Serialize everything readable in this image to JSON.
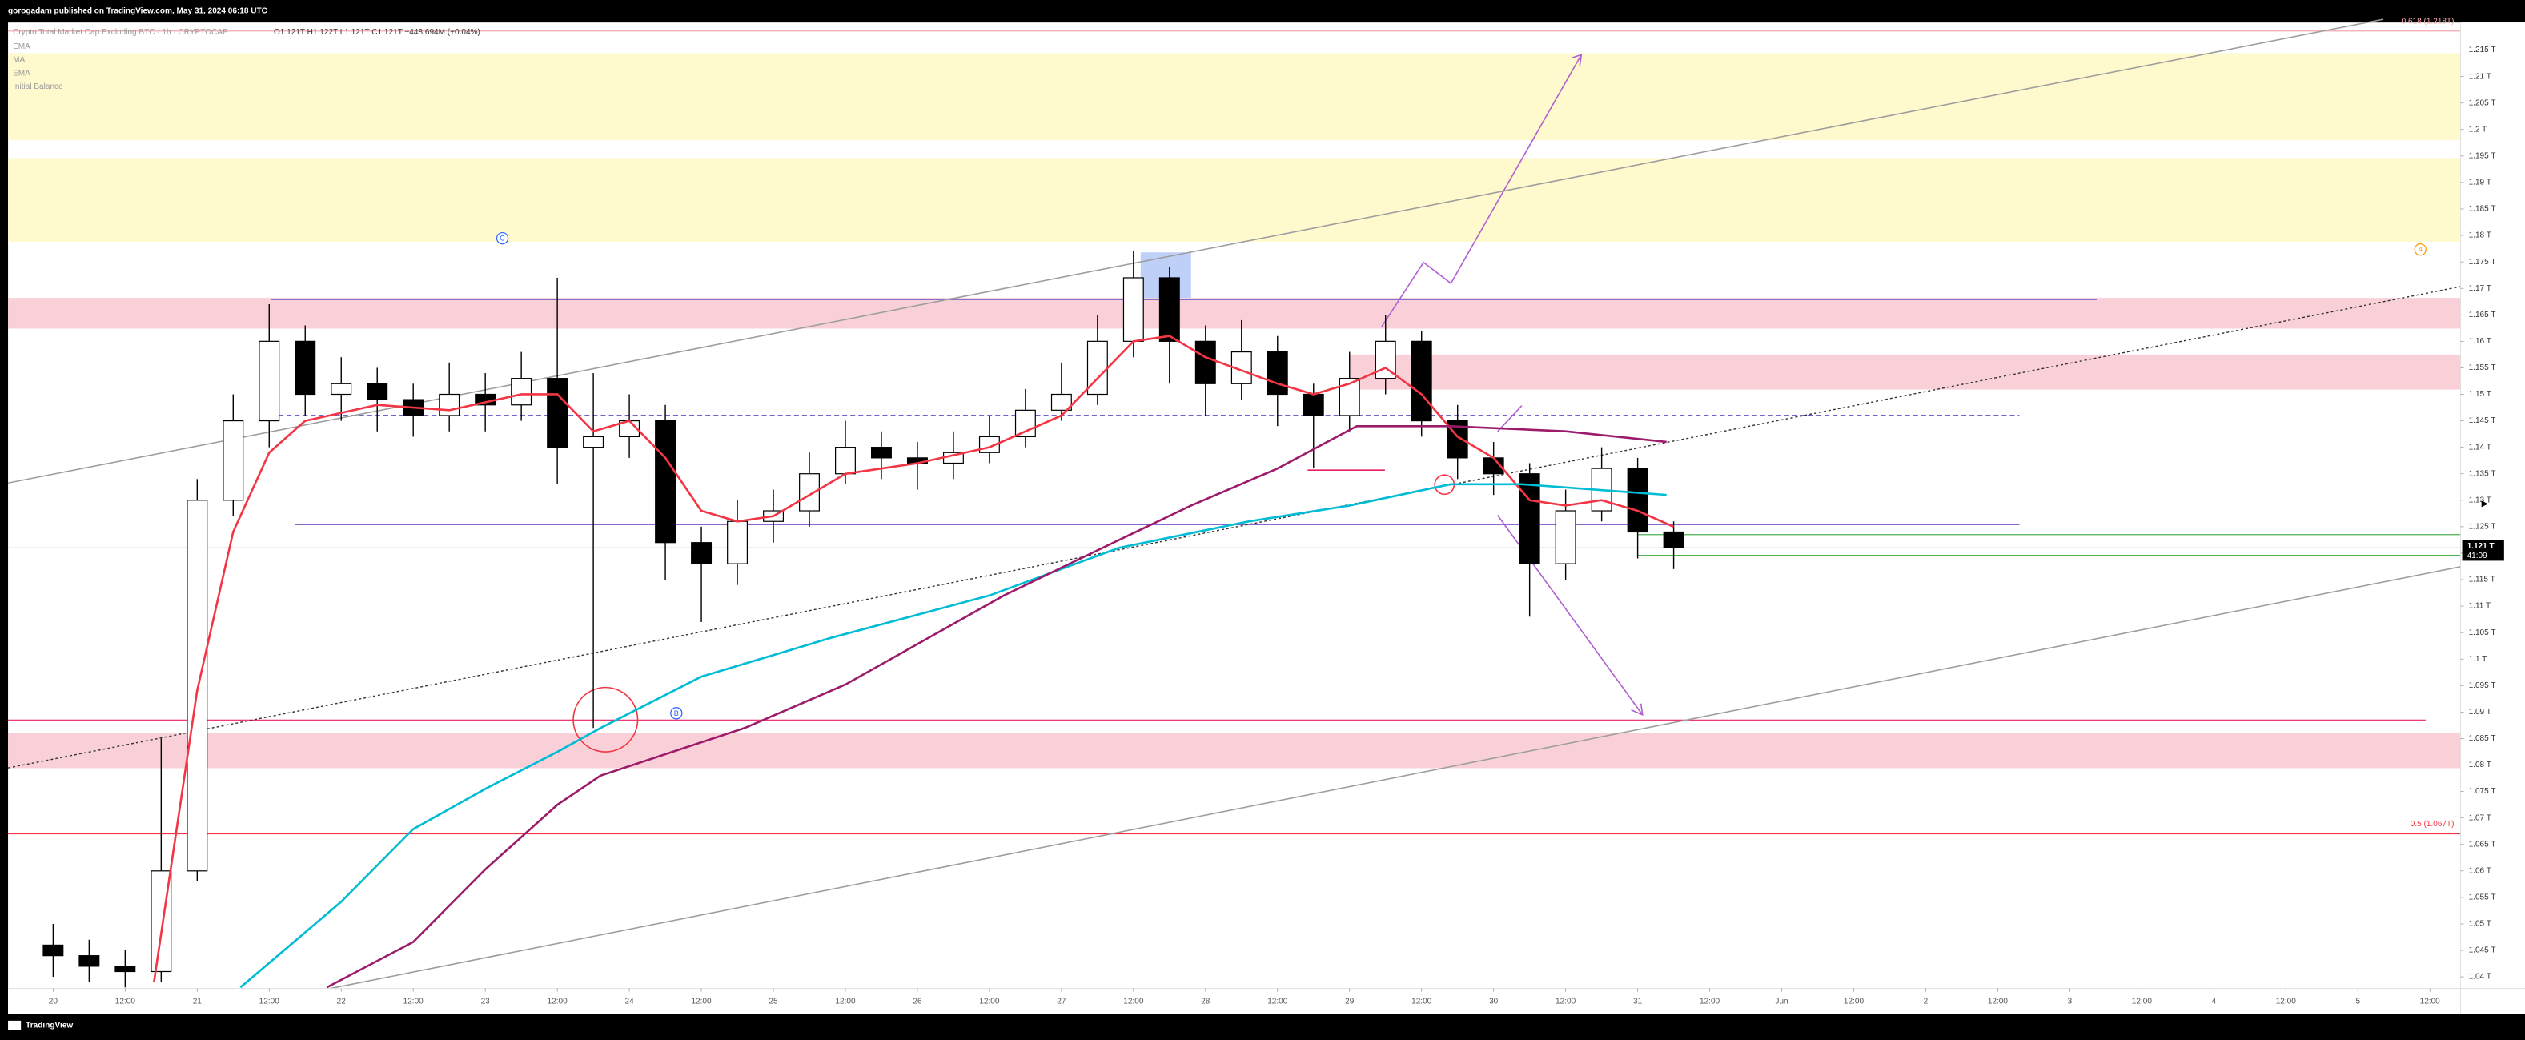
{
  "header": "gorogadam published on TradingView.com, May 31, 2024 06:18 UTC",
  "footer": "TradingView",
  "chart_data": {
    "type": "candlestick",
    "symbol": "Crypto Total Market Cap Excluding BTC · 1h · CRYPTOCAP",
    "ohlc": "O1.121T H1.122T L1.121T C1.121T +448.694M (+0.04%)",
    "legend_extra": "Initial Balance",
    "x": [
      20,
      20.25,
      20.5,
      20.75,
      21,
      21.25,
      21.5,
      21.75,
      22,
      22.25,
      22.5,
      22.75,
      23,
      23.25,
      23.5,
      23.75,
      24,
      24.25,
      24.5,
      24.75,
      25,
      25.25,
      25.5,
      25.75,
      26,
      26.25,
      26.5,
      26.75,
      27,
      27.25,
      27.5,
      27.75,
      28,
      28.25,
      28.5,
      28.75,
      29,
      29.25,
      29.5,
      29.75,
      30,
      30.25,
      30.5,
      30.75,
      31,
      31.25
    ],
    "open": [
      1.046,
      1.044,
      1.042,
      1.041,
      1.06,
      1.13,
      1.145,
      1.16,
      1.15,
      1.152,
      1.149,
      1.146,
      1.15,
      1.148,
      1.153,
      1.14,
      1.142,
      1.145,
      1.122,
      1.118,
      1.126,
      1.128,
      1.135,
      1.14,
      1.138,
      1.137,
      1.139,
      1.142,
      1.147,
      1.15,
      1.16,
      1.172,
      1.16,
      1.152,
      1.158,
      1.15,
      1.146,
      1.153,
      1.16,
      1.145,
      1.138,
      1.135,
      1.118,
      1.128,
      1.136,
      1.124
    ],
    "high": [
      1.05,
      1.047,
      1.045,
      1.085,
      1.134,
      1.15,
      1.167,
      1.163,
      1.157,
      1.155,
      1.152,
      1.156,
      1.154,
      1.158,
      1.172,
      1.154,
      1.15,
      1.148,
      1.125,
      1.13,
      1.132,
      1.139,
      1.145,
      1.143,
      1.141,
      1.143,
      1.146,
      1.151,
      1.156,
      1.165,
      1.177,
      1.174,
      1.163,
      1.164,
      1.161,
      1.152,
      1.158,
      1.165,
      1.162,
      1.148,
      1.141,
      1.137,
      1.132,
      1.14,
      1.138,
      1.126
    ],
    "low": [
      1.04,
      1.039,
      1.038,
      1.039,
      1.058,
      1.127,
      1.14,
      1.146,
      1.145,
      1.143,
      1.142,
      1.143,
      1.143,
      1.145,
      1.133,
      1.087,
      1.138,
      1.115,
      1.107,
      1.114,
      1.122,
      1.125,
      1.133,
      1.134,
      1.132,
      1.134,
      1.137,
      1.14,
      1.145,
      1.148,
      1.157,
      1.152,
      1.146,
      1.149,
      1.144,
      1.136,
      1.143,
      1.15,
      1.142,
      1.134,
      1.131,
      1.108,
      1.115,
      1.126,
      1.119,
      1.117
    ],
    "close": [
      1.044,
      1.042,
      1.041,
      1.06,
      1.13,
      1.145,
      1.16,
      1.15,
      1.152,
      1.149,
      1.146,
      1.15,
      1.148,
      1.153,
      1.14,
      1.142,
      1.145,
      1.122,
      1.118,
      1.126,
      1.128,
      1.135,
      1.14,
      1.138,
      1.137,
      1.139,
      1.142,
      1.147,
      1.15,
      1.16,
      1.172,
      1.16,
      1.152,
      1.158,
      1.15,
      1.146,
      1.153,
      1.16,
      1.145,
      1.138,
      1.135,
      1.118,
      1.128,
      1.136,
      1.124,
      1.121
    ],
    "up_color": "#ffffff",
    "down_color": "#000000",
    "overlays": [
      {
        "name": "EMA",
        "color": "#f23645",
        "x": [
          20.7,
          21,
          21.25,
          21.5,
          21.75,
          22.25,
          22.75,
          23.25,
          23.5,
          23.75,
          24,
          24.25,
          24.5,
          24.75,
          25,
          25.5,
          26,
          26.5,
          27,
          27.25,
          27.5,
          27.75,
          28,
          28.5,
          28.75,
          29,
          29.25,
          29.5,
          29.75,
          30,
          30.25,
          30.5,
          30.75,
          31,
          31.25
        ],
        "values": [
          1.039,
          1.094,
          1.124,
          1.139,
          1.145,
          1.148,
          1.147,
          1.15,
          1.15,
          1.143,
          1.145,
          1.138,
          1.128,
          1.126,
          1.127,
          1.135,
          1.137,
          1.14,
          1.146,
          1.153,
          1.16,
          1.161,
          1.157,
          1.152,
          1.15,
          1.152,
          1.155,
          1.15,
          1.142,
          1.138,
          1.13,
          1.129,
          1.13,
          1.128,
          1.125
        ]
      },
      {
        "name": "MA",
        "color": "#00bcd4",
        "x": [
          21.3,
          22,
          22.5,
          23,
          23.5,
          23.8,
          24.5,
          25.4,
          26.5,
          27.4,
          28.3,
          29,
          29.7,
          30.2,
          31.2
        ],
        "values": [
          1.038,
          1.0542,
          1.0679,
          1.0755,
          1.0825,
          1.087,
          1.0967,
          1.104,
          1.112,
          1.121,
          1.126,
          1.129,
          1.133,
          1.133,
          1.131
        ]
      },
      {
        "name": "EMA",
        "color": "#9c1c6b",
        "x": [
          21.9,
          22.5,
          23,
          23.5,
          23.8,
          24.8,
          25.5,
          26.6,
          27.4,
          27.9,
          28.5,
          29.05,
          29.7,
          30.5,
          31.2
        ],
        "values": [
          1.038,
          1.0466,
          1.0603,
          1.0725,
          1.078,
          1.087,
          1.0952,
          1.112,
          1.1225,
          1.129,
          1.136,
          1.144,
          1.144,
          1.143,
          1.141
        ]
      }
    ],
    "zones": [
      {
        "from": 1.198,
        "to": 1.2144,
        "x": [
          19.687,
          36.713
        ],
        "color": "#fff9c4"
      },
      {
        "from": 1.1788,
        "to": 1.1946,
        "x": [
          19.687,
          36.713
        ],
        "color": "#fff9c4"
      },
      {
        "from": 1.1624,
        "to": 1.1682,
        "x": [
          19.687,
          36.713
        ],
        "color": "#f8c8d0"
      },
      {
        "from": 1.1509,
        "to": 1.1575,
        "x": [
          29.0,
          36.713
        ],
        "color": "#f8c8d0"
      },
      {
        "from": 1.0794,
        "to": 1.0861,
        "x": [
          19.687,
          36.713
        ],
        "color": "#f8c8d0"
      },
      {
        "from": 1.1682,
        "to": 1.1768,
        "x": [
          27.55,
          27.9
        ],
        "color": "#b3c7f7"
      }
    ],
    "levels": [
      {
        "value": 1.2186,
        "x": [
          19.687,
          36.713
        ],
        "color": "#f7a8b0",
        "label": "0.618 (1.218T)"
      },
      {
        "value": 1.067,
        "x": [
          19.687,
          36.713
        ],
        "color": "#f23645",
        "label": "0.5 (1.067T)"
      },
      {
        "value": 1.0885,
        "x": [
          19.687,
          36.47
        ],
        "color": "#e91e63"
      },
      {
        "value": 1.1679,
        "x": [
          21.51,
          34.19
        ],
        "color": "#5b4fc7"
      },
      {
        "value": 1.1254,
        "x": [
          21.68,
          33.65
        ],
        "color": "#7b4fc7"
      },
      {
        "value": 1.146,
        "x": [
          21.51,
          33.65
        ],
        "color": "#5b4fc7",
        "dash": true
      },
      {
        "value": 1.1235,
        "x": [
          31.0,
          36.713
        ],
        "color": "#4caf50"
      },
      {
        "value": 1.1196,
        "x": [
          31.0,
          36.713
        ],
        "color": "#4caf50"
      },
      {
        "value": 1.121,
        "x": [
          19.687,
          36.713
        ],
        "color": "#bbbbbb"
      }
    ],
    "annotations": [
      "C",
      "B",
      "4"
    ],
    "last_price": {
      "value": 1.121,
      "label": "1.121 T"
    },
    "countdown": "41:09",
    "xlim": [
      19.687,
      36.713
    ],
    "ylim": [
      1.0378,
      1.2202
    ],
    "xticks": [
      20,
      {
        "value": 20.5,
        "label": "12:00"
      },
      21,
      {
        "value": 21.5,
        "label": "12:00"
      },
      22,
      {
        "value": 22.5,
        "label": "12:00"
      },
      23,
      {
        "value": 23.5,
        "label": "12:00"
      },
      24,
      {
        "value": 24.5,
        "label": "12:00"
      },
      25,
      {
        "value": 25.5,
        "label": "12:00"
      },
      26,
      {
        "value": 26.5,
        "label": "12:00"
      },
      27,
      {
        "value": 27.5,
        "label": "12:00"
      },
      28,
      {
        "value": 28.5,
        "label": "12:00"
      },
      29,
      {
        "value": 29.5,
        "label": "12:00"
      },
      30,
      {
        "value": 30.5,
        "label": "12:00"
      },
      31,
      {
        "value": 31.5,
        "label": "12:00"
      },
      {
        "value": 32,
        "label": "Jun"
      },
      {
        "value": 32.5,
        "label": "12:00"
      },
      {
        "value": 33,
        "label": "2"
      },
      {
        "value": 33.5,
        "label": "12:00"
      },
      {
        "value": 34,
        "label": "3"
      },
      {
        "value": 34.5,
        "label": "12:00"
      },
      {
        "value": 35,
        "label": "4"
      },
      {
        "value": 35.5,
        "label": "12:00"
      },
      {
        "value": 36,
        "label": "5"
      },
      {
        "value": 36.5,
        "label": "12:00"
      }
    ],
    "yticks": [
      {
        "value": 1.04,
        "label": "1.04 T"
      },
      {
        "value": 1.045,
        "label": "1.045 T"
      },
      {
        "value": 1.05,
        "label": "1.05 T"
      },
      {
        "value": 1.055,
        "label": "1.055 T"
      },
      {
        "value": 1.06,
        "label": "1.06 T"
      },
      {
        "value": 1.065,
        "label": "1.065 T"
      },
      {
        "value": 1.07,
        "label": "1.07 T"
      },
      {
        "value": 1.075,
        "label": "1.075 T"
      },
      {
        "value": 1.08,
        "label": "1.08 T"
      },
      {
        "value": 1.085,
        "label": "1.085 T"
      },
      {
        "value": 1.09,
        "label": "1.09 T"
      },
      {
        "value": 1.095,
        "label": "1.095 T"
      },
      {
        "value": 1.1,
        "label": "1.1 T"
      },
      {
        "value": 1.105,
        "label": "1.105 T"
      },
      {
        "value": 1.11,
        "label": "1.11 T"
      },
      {
        "value": 1.115,
        "label": "1.115 T"
      },
      {
        "value": 1.12,
        "label": "1.12 T"
      },
      {
        "value": 1.125,
        "label": "1.125 T"
      },
      {
        "value": 1.13,
        "label": "1.13 T"
      },
      {
        "value": 1.135,
        "label": "1.135 T"
      },
      {
        "value": 1.14,
        "label": "1.14 T"
      },
      {
        "value": 1.145,
        "label": "1.145 T"
      },
      {
        "value": 1.15,
        "label": "1.15 T"
      },
      {
        "value": 1.155,
        "label": "1.155 T"
      },
      {
        "value": 1.16,
        "label": "1.16 T"
      },
      {
        "value": 1.165,
        "label": "1.165 T"
      },
      {
        "value": 1.17,
        "label": "1.17 T"
      },
      {
        "value": 1.175,
        "label": "1.175 T"
      },
      {
        "value": 1.18,
        "label": "1.18 T"
      },
      {
        "value": 1.185,
        "label": "1.185 T"
      },
      {
        "value": 1.19,
        "label": "1.19 T"
      },
      {
        "value": 1.195,
        "label": "1.195 T"
      },
      {
        "value": 1.2,
        "label": "1.2 T"
      },
      {
        "value": 1.205,
        "label": "1.205 T"
      },
      {
        "value": 1.21,
        "label": "1.21 T"
      },
      {
        "value": 1.215,
        "label": "1.215 T"
      }
    ]
  }
}
